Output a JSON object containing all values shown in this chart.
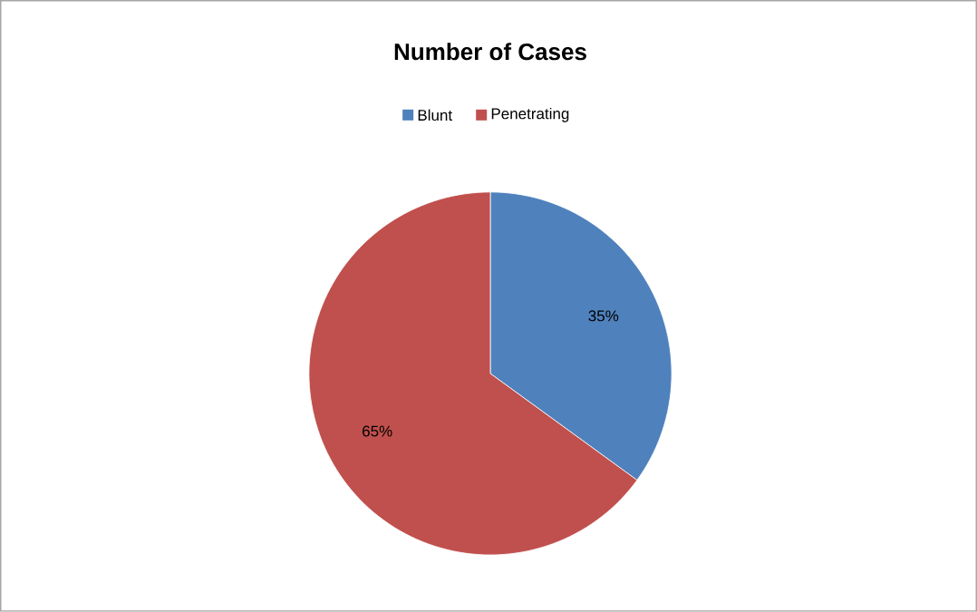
{
  "chart_data": {
    "type": "pie",
    "title": "Number of Cases",
    "categories": [
      "Blunt",
      "Penetrating"
    ],
    "values": [
      35,
      65
    ],
    "colors": [
      "#4f81bd",
      "#c0504d"
    ],
    "value_labels": [
      "35%",
      "65%"
    ],
    "legend": "top"
  }
}
